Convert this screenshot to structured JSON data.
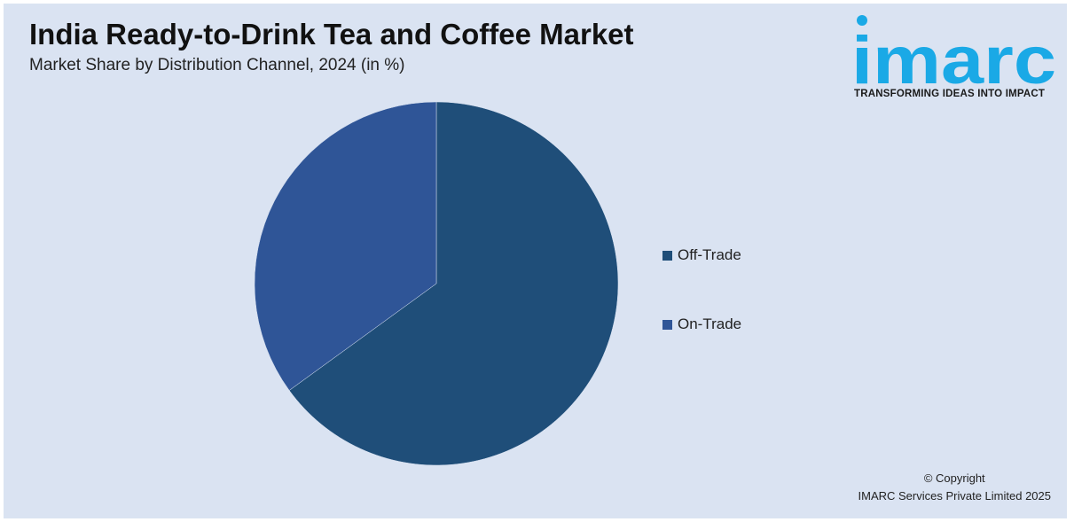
{
  "header": {
    "title": "India Ready-to-Drink Tea and Coffee Market",
    "subtitle": "Market Share by Distribution Channel, 2024 (in %)"
  },
  "brand": {
    "logo_text": "imarc",
    "tagline": "TRANSFORMING IDEAS INTO IMPACT",
    "color": "#1aa9e6"
  },
  "chart_data": {
    "type": "pie",
    "categories": [
      "Off-Trade",
      "On-Trade"
    ],
    "values": [
      65,
      35
    ],
    "colors": [
      "#1f4e79",
      "#2f5597"
    ],
    "legend_position": "right"
  },
  "footer": {
    "copyright_line1": "© Copyright",
    "copyright_line2": "IMARC Services Private Limited 2025"
  }
}
